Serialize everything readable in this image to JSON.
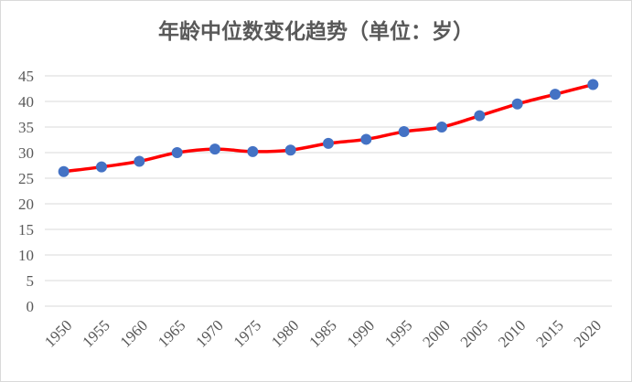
{
  "chart_data": {
    "type": "line",
    "title": "年龄中位数变化趋势（单位：岁）",
    "xlabel": "",
    "ylabel": "",
    "categories": [
      "1950",
      "1955",
      "1960",
      "1965",
      "1970",
      "1975",
      "1980",
      "1985",
      "1990",
      "1995",
      "2000",
      "2005",
      "2010",
      "2015",
      "2020"
    ],
    "series": [
      {
        "values": [
          26.3,
          27.2,
          28.3,
          30.0,
          30.7,
          30.2,
          30.5,
          31.8,
          32.6,
          34.1,
          35.0,
          37.2,
          39.5,
          41.4,
          43.3
        ]
      }
    ],
    "ylim": [
      0,
      45
    ],
    "yticks": [
      0,
      5,
      10,
      15,
      20,
      25,
      30,
      35,
      40,
      45
    ],
    "grid": true,
    "line_color": "#ff0000",
    "marker_color": "#4472c4",
    "grid_color": "#d9d9d9"
  }
}
